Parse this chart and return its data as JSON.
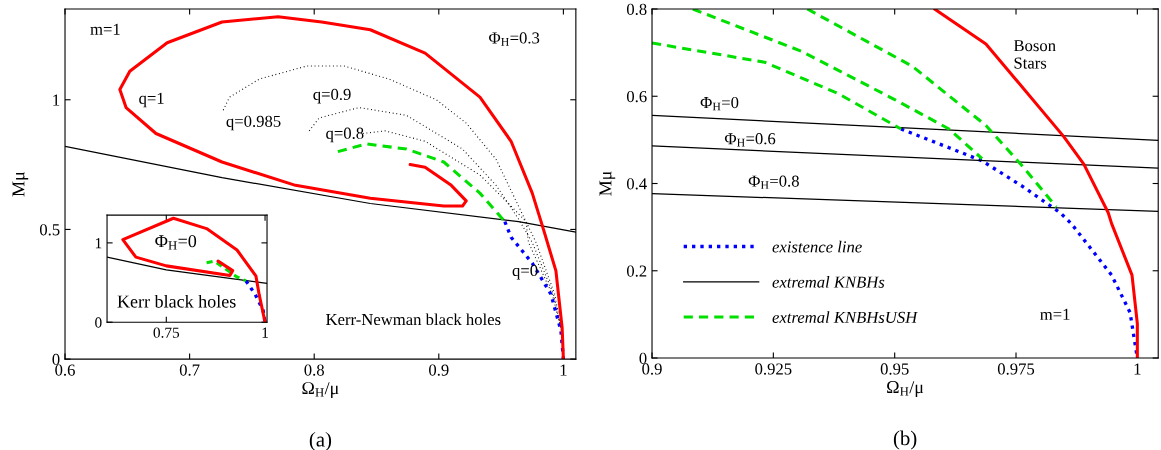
{
  "chart_data": [
    {
      "type": "line",
      "xlabel": "Ω$_{H}$/μ",
      "ylabel": "Mμ",
      "xlim": [
        0.6,
        1.01
      ],
      "ylim": [
        0,
        1.35
      ],
      "xticks": [
        0.6,
        0.7,
        0.8,
        0.9,
        1
      ],
      "yticks": [
        0,
        0.5,
        1
      ],
      "series": [
        {
          "color": "#000000",
          "line_style": "solid",
          "x": [
            0.6,
            0.726,
            0.845,
            0.964,
            1.01
          ],
          "values": [
            0.82,
            0.7,
            0.6,
            0.53,
            0.49
          ]
        },
        {
          "color": "#000000",
          "line_style": "dotted",
          "x": [
            0.727,
            0.732,
            0.756,
            0.794,
            0.824,
            0.86,
            0.898,
            0.922,
            0.946,
            0.964,
            0.978,
            0.993,
            0.999,
            1.0
          ],
          "values": [
            0.96,
            1.01,
            1.08,
            1.13,
            1.13,
            1.08,
            1.0,
            0.91,
            0.77,
            0.59,
            0.45,
            0.25,
            0.1,
            0
          ]
        },
        {
          "color": "#000000",
          "line_style": "dotted",
          "x": [
            0.796,
            0.804,
            0.836,
            0.874,
            0.919,
            0.946,
            0.964,
            0.975,
            0.992,
            0.999,
            1.0
          ],
          "values": [
            0.88,
            0.93,
            0.97,
            0.94,
            0.81,
            0.67,
            0.54,
            0.45,
            0.25,
            0.1,
            0
          ]
        },
        {
          "color": "#000000",
          "line_style": "dotted",
          "x": [
            0.839,
            0.857,
            0.889,
            0.933,
            0.958,
            0.97,
            0.972,
            0.991,
            0.999,
            1.0
          ],
          "values": [
            0.87,
            0.88,
            0.84,
            0.71,
            0.59,
            0.53,
            0.45,
            0.25,
            0.1,
            0
          ]
        },
        {
          "color": "#00e000",
          "line_style": "dashed",
          "x": [
            0.819,
            0.842,
            0.874,
            0.904,
            0.933,
            0.953
          ],
          "values": [
            0.8,
            0.83,
            0.81,
            0.76,
            0.64,
            0.53
          ]
        },
        {
          "color": "#0000ff",
          "line_style": "dotted",
          "x": [
            0.953,
            0.958,
            0.975,
            0.99,
            0.998,
            1.0
          ],
          "values": [
            0.53,
            0.47,
            0.37,
            0.25,
            0.11,
            0
          ]
        },
        {
          "color": "#ff0000",
          "line_style": "solid",
          "x": [
            1.0,
            0.999,
            0.994,
            0.984,
            0.975,
            0.958,
            0.933,
            0.889,
            0.845,
            0.806,
            0.771,
            0.726,
            0.682,
            0.652,
            0.644,
            0.649,
            0.673,
            0.726,
            0.785,
            0.845,
            0.904,
            0.919,
            0.922,
            0.91,
            0.889,
            0.877
          ],
          "values": [
            0,
            0.12,
            0.34,
            0.5,
            0.64,
            0.84,
            1.01,
            1.18,
            1.27,
            1.3,
            1.32,
            1.3,
            1.22,
            1.11,
            1.04,
            0.97,
            0.87,
            0.76,
            0.67,
            0.62,
            0.59,
            0.59,
            0.61,
            0.67,
            0.74,
            0.75
          ]
        }
      ],
      "annotations": [
        "m=1",
        "Φ$_{H}$=0.3",
        "q=1",
        "q=0.985",
        "q=0.9",
        "q=0.8",
        "q=0",
        "Kerr-Newman black holes",
        "(a)"
      ]
    },
    {
      "type": "line",
      "xlim": [
        0.6,
        1.005
      ],
      "ylim": [
        0,
        1.35
      ],
      "xticks": [
        0.75,
        1
      ],
      "yticks": [
        0,
        1
      ],
      "series": [
        {
          "color": "#000000",
          "line_style": "solid",
          "x": [
            0.6,
            0.75,
            1.005
          ],
          "values": [
            0.82,
            0.66,
            0.49
          ]
        },
        {
          "color": "#00e000",
          "line_style": "dashed",
          "x": [
            0.852,
            0.872,
            0.929,
            0.952
          ],
          "values": [
            0.75,
            0.77,
            0.57,
            0.52
          ]
        },
        {
          "color": "#0000ff",
          "line_style": "dotted",
          "x": [
            0.952,
            0.975,
            0.995,
            1.0
          ],
          "values": [
            0.52,
            0.35,
            0.15,
            0
          ]
        },
        {
          "color": "#ff0000",
          "line_style": "solid",
          "x": [
            1.0,
            0.985,
            0.977,
            0.929,
            0.852,
            0.768,
            0.64,
            0.673,
            0.75,
            0.911,
            0.918,
            0.881
          ],
          "values": [
            0,
            0.35,
            0.58,
            0.91,
            1.18,
            1.31,
            1.04,
            0.82,
            0.71,
            0.59,
            0.65,
            0.77
          ]
        }
      ],
      "annotations": [
        "Φ$_{H}$=0",
        "Kerr black holes"
      ]
    },
    {
      "type": "line",
      "xlabel": "Ω$_{H}$/μ",
      "ylabel": "Mμ",
      "xlim": [
        0.9,
        1.0043
      ],
      "ylim": [
        0,
        0.8
      ],
      "xticks": [
        0.9,
        0.925,
        0.95,
        0.975,
        1
      ],
      "yticks": [
        0,
        0.2,
        0.4,
        0.6,
        0.8
      ],
      "legend": "bottom left",
      "series": [
        {
          "name": "existence line",
          "color": "#0000ff",
          "line_style": "dotted",
          "x": [
            0.9513,
            0.9612,
            0.968,
            0.9764,
            0.9841,
            0.9864,
            0.9947,
            0.9985,
            1.0
          ],
          "values": [
            0.525,
            0.482,
            0.452,
            0.393,
            0.333,
            0.308,
            0.19,
            0.104,
            0
          ]
        },
        {
          "name": "extremal KNBHs",
          "color": "#000000",
          "line_style": "solid",
          "x": [
            0.9,
            1.0043
          ],
          "values": [
            0.556,
            0.499
          ]
        },
        {
          "name": "extremal KNBHsUSH",
          "color": "#00e000",
          "line_style": "dashed",
          "x": [
            0.9,
            0.9232,
            0.9384,
            0.9513
          ],
          "values": [
            0.722,
            0.678,
            0.606,
            0.525
          ]
        },
        {
          "color": "#000000",
          "line_style": "solid",
          "x": [
            0.9,
            1.0043
          ],
          "values": [
            0.486,
            0.435
          ]
        },
        {
          "color": "#000000",
          "line_style": "solid",
          "x": [
            0.9,
            1.0043
          ],
          "values": [
            0.377,
            0.336
          ]
        },
        {
          "color": "#00e000",
          "line_style": "dashed",
          "x": [
            0.9084,
            0.9308,
            0.9499,
            0.9612,
            0.968
          ],
          "values": [
            0.8,
            0.703,
            0.593,
            0.525,
            0.457
          ]
        },
        {
          "color": "#00e000",
          "line_style": "dashed",
          "x": [
            0.932,
            0.9536,
            0.9688,
            0.9764,
            0.9833
          ],
          "values": [
            0.8,
            0.669,
            0.533,
            0.439,
            0.346
          ]
        },
        {
          "color": "#ff0000",
          "line_style": "solid",
          "x": [
            0.9582,
            0.9688,
            0.9848,
            0.989,
            0.994,
            0.9947,
            0.9989,
            1.0,
            1.0
          ],
          "values": [
            0.8,
            0.72,
            0.508,
            0.444,
            0.333,
            0.308,
            0.19,
            0.079,
            0
          ]
        }
      ],
      "annotations": [
        "Φ$_{H}$=0",
        "Φ$_{H}$=0.6",
        "Φ$_{H}$=0.8",
        "Boson\nStars",
        "m=1",
        "(b)"
      ]
    }
  ]
}
